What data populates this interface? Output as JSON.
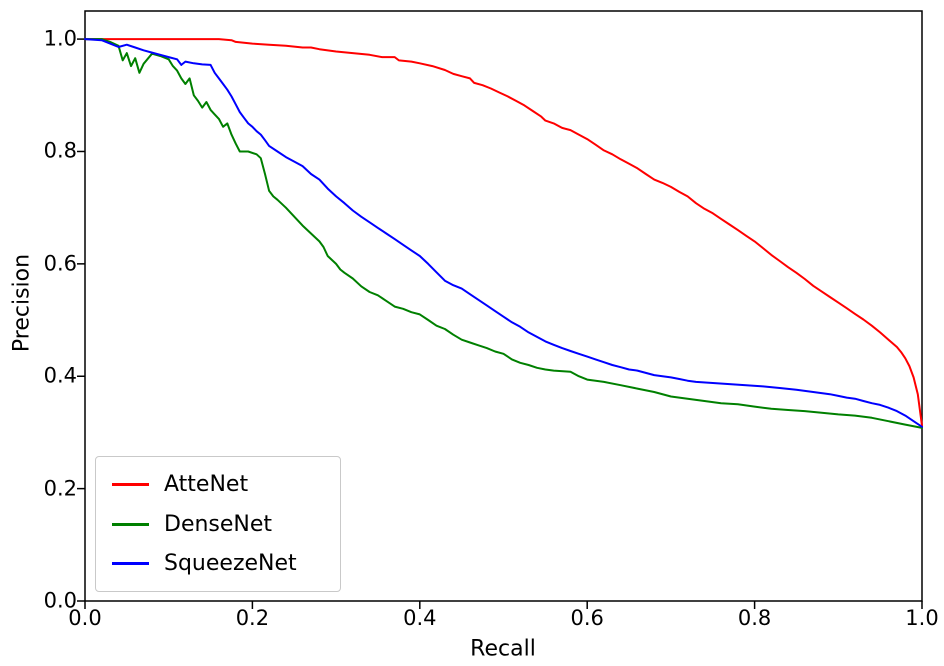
{
  "chart_data": {
    "type": "line",
    "title": "",
    "xlabel": "Recall",
    "ylabel": "Precision",
    "xlim": [
      0.0,
      1.0
    ],
    "ylim": [
      0.0,
      1.05
    ],
    "xticks": [
      0.0,
      0.2,
      0.4,
      0.6,
      0.8,
      1.0
    ],
    "xtick_labels": [
      "0.0",
      "0.2",
      "0.4",
      "0.6",
      "0.8",
      "1.0"
    ],
    "yticks": [
      0.0,
      0.2,
      0.4,
      0.6,
      0.8,
      1.0
    ],
    "ytick_labels": [
      "0.0",
      "0.2",
      "0.4",
      "0.6",
      "0.8",
      "1.0"
    ],
    "grid": false,
    "legend": {
      "position": "lower left",
      "entries": [
        "AtteNet",
        "DenseNet",
        "SqueezeNet"
      ]
    },
    "series": [
      {
        "name": "AtteNet",
        "color": "#ff0000",
        "points": [
          [
            0,
            1
          ],
          [
            0.04,
            1
          ],
          [
            0.08,
            1
          ],
          [
            0.12,
            1
          ],
          [
            0.16,
            1
          ],
          [
            0.175,
            0.998
          ],
          [
            0.18,
            0.995
          ],
          [
            0.2,
            0.992
          ],
          [
            0.22,
            0.99
          ],
          [
            0.24,
            0.988
          ],
          [
            0.26,
            0.985
          ],
          [
            0.27,
            0.985
          ],
          [
            0.28,
            0.982
          ],
          [
            0.3,
            0.978
          ],
          [
            0.32,
            0.975
          ],
          [
            0.34,
            0.972
          ],
          [
            0.355,
            0.968
          ],
          [
            0.37,
            0.968
          ],
          [
            0.375,
            0.962
          ],
          [
            0.39,
            0.96
          ],
          [
            0.4,
            0.957
          ],
          [
            0.415,
            0.952
          ],
          [
            0.43,
            0.945
          ],
          [
            0.44,
            0.938
          ],
          [
            0.45,
            0.934
          ],
          [
            0.46,
            0.93
          ],
          [
            0.465,
            0.922
          ],
          [
            0.475,
            0.918
          ],
          [
            0.485,
            0.912
          ],
          [
            0.495,
            0.905
          ],
          [
            0.505,
            0.898
          ],
          [
            0.515,
            0.89
          ],
          [
            0.525,
            0.882
          ],
          [
            0.535,
            0.872
          ],
          [
            0.545,
            0.862
          ],
          [
            0.55,
            0.855
          ],
          [
            0.56,
            0.85
          ],
          [
            0.57,
            0.842
          ],
          [
            0.58,
            0.838
          ],
          [
            0.59,
            0.83
          ],
          [
            0.6,
            0.822
          ],
          [
            0.61,
            0.812
          ],
          [
            0.62,
            0.802
          ],
          [
            0.63,
            0.795
          ],
          [
            0.64,
            0.786
          ],
          [
            0.65,
            0.778
          ],
          [
            0.66,
            0.77
          ],
          [
            0.67,
            0.76
          ],
          [
            0.68,
            0.75
          ],
          [
            0.69,
            0.744
          ],
          [
            0.7,
            0.737
          ],
          [
            0.71,
            0.728
          ],
          [
            0.72,
            0.72
          ],
          [
            0.73,
            0.708
          ],
          [
            0.74,
            0.698
          ],
          [
            0.75,
            0.69
          ],
          [
            0.76,
            0.68
          ],
          [
            0.77,
            0.67
          ],
          [
            0.78,
            0.66
          ],
          [
            0.79,
            0.65
          ],
          [
            0.8,
            0.64
          ],
          [
            0.81,
            0.628
          ],
          [
            0.82,
            0.616
          ],
          [
            0.83,
            0.605
          ],
          [
            0.84,
            0.594
          ],
          [
            0.85,
            0.584
          ],
          [
            0.86,
            0.573
          ],
          [
            0.87,
            0.561
          ],
          [
            0.88,
            0.551
          ],
          [
            0.89,
            0.541
          ],
          [
            0.9,
            0.531
          ],
          [
            0.91,
            0.521
          ],
          [
            0.92,
            0.511
          ],
          [
            0.93,
            0.501
          ],
          [
            0.94,
            0.49
          ],
          [
            0.95,
            0.478
          ],
          [
            0.96,
            0.465
          ],
          [
            0.97,
            0.452
          ],
          [
            0.975,
            0.443
          ],
          [
            0.98,
            0.432
          ],
          [
            0.985,
            0.418
          ],
          [
            0.99,
            0.398
          ],
          [
            0.995,
            0.368
          ],
          [
            1,
            0.312
          ]
        ]
      },
      {
        "name": "DenseNet",
        "color": "#008000",
        "points": [
          [
            0,
            1
          ],
          [
            0.02,
            1
          ],
          [
            0.03,
            0.995
          ],
          [
            0.04,
            0.988
          ],
          [
            0.045,
            0.962
          ],
          [
            0.05,
            0.975
          ],
          [
            0.055,
            0.952
          ],
          [
            0.06,
            0.966
          ],
          [
            0.065,
            0.94
          ],
          [
            0.07,
            0.956
          ],
          [
            0.08,
            0.974
          ],
          [
            0.09,
            0.97
          ],
          [
            0.1,
            0.964
          ],
          [
            0.105,
            0.952
          ],
          [
            0.11,
            0.944
          ],
          [
            0.115,
            0.93
          ],
          [
            0.12,
            0.92
          ],
          [
            0.125,
            0.93
          ],
          [
            0.13,
            0.9
          ],
          [
            0.135,
            0.89
          ],
          [
            0.14,
            0.878
          ],
          [
            0.145,
            0.888
          ],
          [
            0.15,
            0.874
          ],
          [
            0.155,
            0.866
          ],
          [
            0.16,
            0.858
          ],
          [
            0.165,
            0.844
          ],
          [
            0.17,
            0.85
          ],
          [
            0.175,
            0.83
          ],
          [
            0.18,
            0.814
          ],
          [
            0.185,
            0.8
          ],
          [
            0.195,
            0.8
          ],
          [
            0.205,
            0.795
          ],
          [
            0.21,
            0.788
          ],
          [
            0.215,
            0.76
          ],
          [
            0.22,
            0.73
          ],
          [
            0.225,
            0.72
          ],
          [
            0.23,
            0.714
          ],
          [
            0.24,
            0.7
          ],
          [
            0.25,
            0.684
          ],
          [
            0.26,
            0.668
          ],
          [
            0.27,
            0.654
          ],
          [
            0.28,
            0.64
          ],
          [
            0.285,
            0.63
          ],
          [
            0.29,
            0.614
          ],
          [
            0.3,
            0.6
          ],
          [
            0.305,
            0.59
          ],
          [
            0.31,
            0.584
          ],
          [
            0.32,
            0.574
          ],
          [
            0.33,
            0.56
          ],
          [
            0.34,
            0.55
          ],
          [
            0.35,
            0.544
          ],
          [
            0.36,
            0.534
          ],
          [
            0.37,
            0.524
          ],
          [
            0.38,
            0.52
          ],
          [
            0.39,
            0.514
          ],
          [
            0.4,
            0.51
          ],
          [
            0.41,
            0.5
          ],
          [
            0.42,
            0.49
          ],
          [
            0.43,
            0.484
          ],
          [
            0.44,
            0.474
          ],
          [
            0.45,
            0.465
          ],
          [
            0.46,
            0.46
          ],
          [
            0.47,
            0.455
          ],
          [
            0.48,
            0.45
          ],
          [
            0.49,
            0.444
          ],
          [
            0.5,
            0.44
          ],
          [
            0.51,
            0.43
          ],
          [
            0.52,
            0.424
          ],
          [
            0.53,
            0.42
          ],
          [
            0.54,
            0.415
          ],
          [
            0.55,
            0.412
          ],
          [
            0.56,
            0.41
          ],
          [
            0.58,
            0.408
          ],
          [
            0.59,
            0.4
          ],
          [
            0.6,
            0.394
          ],
          [
            0.62,
            0.39
          ],
          [
            0.64,
            0.384
          ],
          [
            0.66,
            0.378
          ],
          [
            0.68,
            0.372
          ],
          [
            0.7,
            0.364
          ],
          [
            0.72,
            0.36
          ],
          [
            0.74,
            0.356
          ],
          [
            0.76,
            0.352
          ],
          [
            0.78,
            0.35
          ],
          [
            0.8,
            0.346
          ],
          [
            0.82,
            0.342
          ],
          [
            0.84,
            0.34
          ],
          [
            0.86,
            0.338
          ],
          [
            0.88,
            0.335
          ],
          [
            0.9,
            0.332
          ],
          [
            0.92,
            0.33
          ],
          [
            0.94,
            0.326
          ],
          [
            0.96,
            0.32
          ],
          [
            0.98,
            0.314
          ],
          [
            1,
            0.308
          ]
        ]
      },
      {
        "name": "SqueezeNet",
        "color": "#0000ff",
        "points": [
          [
            0,
            1
          ],
          [
            0.02,
            0.998
          ],
          [
            0.03,
            0.992
          ],
          [
            0.04,
            0.986
          ],
          [
            0.05,
            0.99
          ],
          [
            0.06,
            0.985
          ],
          [
            0.07,
            0.98
          ],
          [
            0.08,
            0.976
          ],
          [
            0.09,
            0.972
          ],
          [
            0.1,
            0.968
          ],
          [
            0.11,
            0.964
          ],
          [
            0.115,
            0.954
          ],
          [
            0.12,
            0.96
          ],
          [
            0.13,
            0.957
          ],
          [
            0.14,
            0.955
          ],
          [
            0.15,
            0.954
          ],
          [
            0.155,
            0.94
          ],
          [
            0.16,
            0.93
          ],
          [
            0.165,
            0.92
          ],
          [
            0.17,
            0.91
          ],
          [
            0.175,
            0.898
          ],
          [
            0.18,
            0.884
          ],
          [
            0.185,
            0.87
          ],
          [
            0.19,
            0.86
          ],
          [
            0.195,
            0.85
          ],
          [
            0.2,
            0.844
          ],
          [
            0.205,
            0.836
          ],
          [
            0.21,
            0.83
          ],
          [
            0.215,
            0.82
          ],
          [
            0.22,
            0.81
          ],
          [
            0.23,
            0.8
          ],
          [
            0.24,
            0.79
          ],
          [
            0.25,
            0.782
          ],
          [
            0.26,
            0.774
          ],
          [
            0.27,
            0.76
          ],
          [
            0.28,
            0.75
          ],
          [
            0.29,
            0.734
          ],
          [
            0.3,
            0.72
          ],
          [
            0.31,
            0.708
          ],
          [
            0.32,
            0.695
          ],
          [
            0.33,
            0.684
          ],
          [
            0.34,
            0.674
          ],
          [
            0.35,
            0.664
          ],
          [
            0.36,
            0.654
          ],
          [
            0.37,
            0.644
          ],
          [
            0.38,
            0.634
          ],
          [
            0.39,
            0.624
          ],
          [
            0.4,
            0.614
          ],
          [
            0.41,
            0.6
          ],
          [
            0.42,
            0.585
          ],
          [
            0.43,
            0.57
          ],
          [
            0.44,
            0.562
          ],
          [
            0.45,
            0.556
          ],
          [
            0.46,
            0.546
          ],
          [
            0.47,
            0.536
          ],
          [
            0.48,
            0.526
          ],
          [
            0.49,
            0.516
          ],
          [
            0.5,
            0.506
          ],
          [
            0.51,
            0.496
          ],
          [
            0.52,
            0.488
          ],
          [
            0.53,
            0.478
          ],
          [
            0.54,
            0.47
          ],
          [
            0.55,
            0.462
          ],
          [
            0.56,
            0.456
          ],
          [
            0.57,
            0.45
          ],
          [
            0.58,
            0.445
          ],
          [
            0.59,
            0.44
          ],
          [
            0.6,
            0.435
          ],
          [
            0.61,
            0.43
          ],
          [
            0.62,
            0.425
          ],
          [
            0.63,
            0.42
          ],
          [
            0.64,
            0.416
          ],
          [
            0.65,
            0.412
          ],
          [
            0.66,
            0.41
          ],
          [
            0.67,
            0.406
          ],
          [
            0.68,
            0.402
          ],
          [
            0.69,
            0.4
          ],
          [
            0.7,
            0.398
          ],
          [
            0.71,
            0.395
          ],
          [
            0.72,
            0.392
          ],
          [
            0.73,
            0.39
          ],
          [
            0.75,
            0.388
          ],
          [
            0.77,
            0.386
          ],
          [
            0.79,
            0.384
          ],
          [
            0.81,
            0.382
          ],
          [
            0.83,
            0.379
          ],
          [
            0.85,
            0.376
          ],
          [
            0.87,
            0.372
          ],
          [
            0.89,
            0.368
          ],
          [
            0.9,
            0.365
          ],
          [
            0.91,
            0.362
          ],
          [
            0.92,
            0.36
          ],
          [
            0.93,
            0.356
          ],
          [
            0.94,
            0.352
          ],
          [
            0.95,
            0.349
          ],
          [
            0.96,
            0.344
          ],
          [
            0.97,
            0.338
          ],
          [
            0.98,
            0.33
          ],
          [
            0.99,
            0.32
          ],
          [
            1,
            0.31
          ]
        ]
      }
    ]
  }
}
